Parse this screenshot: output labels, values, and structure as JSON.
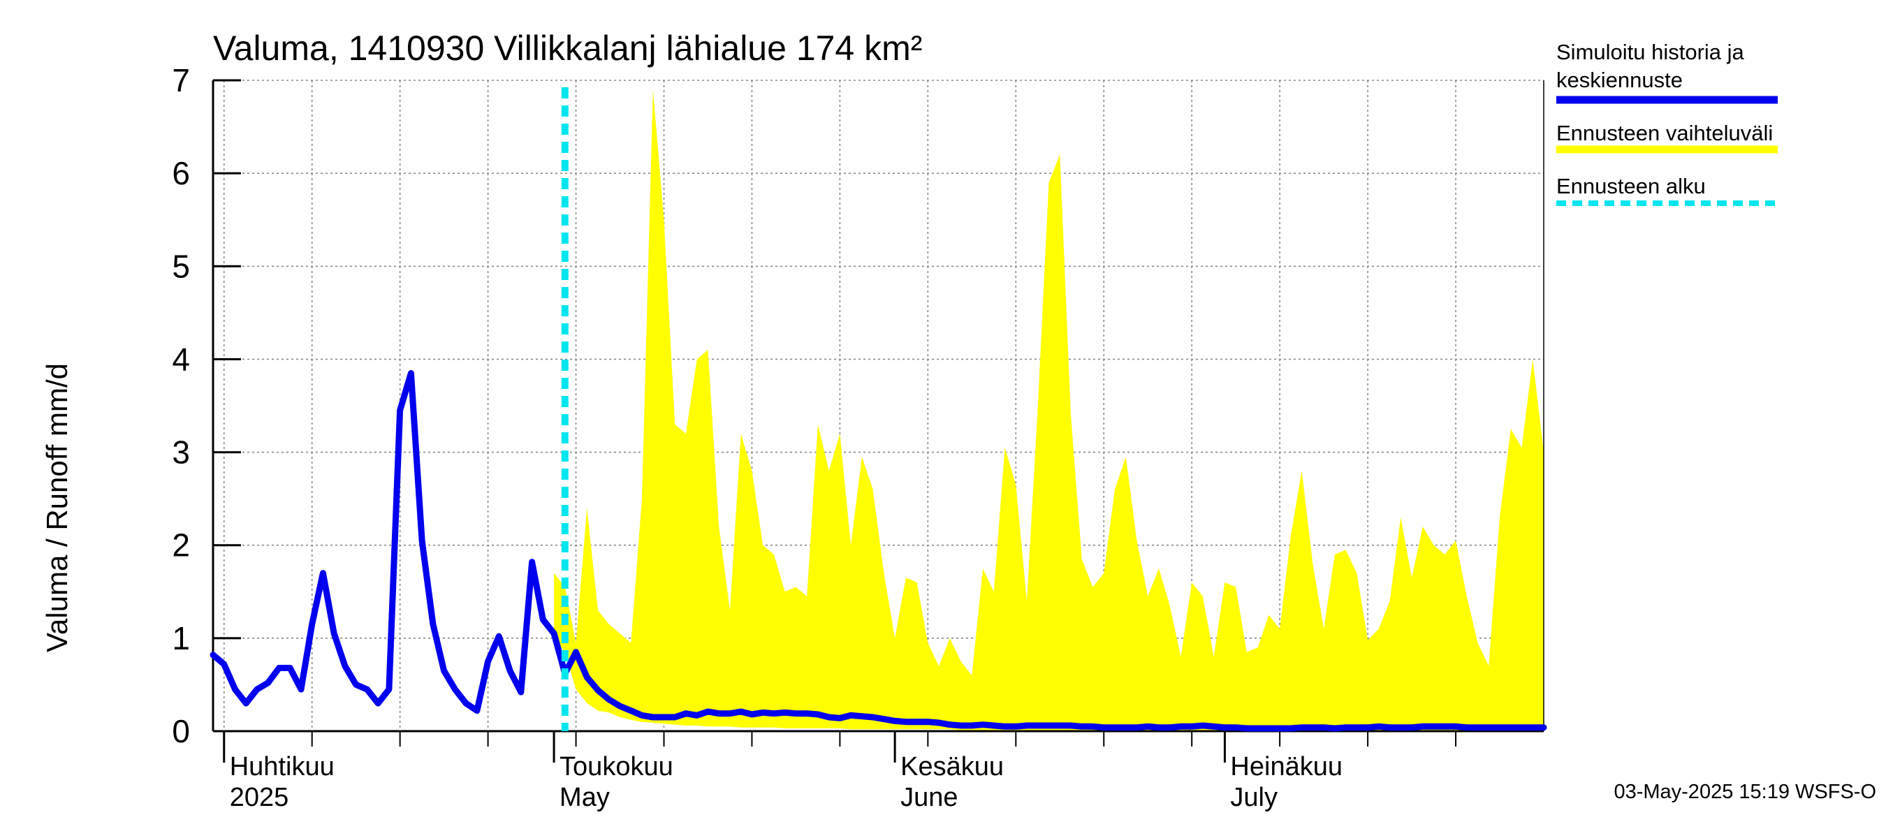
{
  "chart_data": {
    "type": "area",
    "title": "Valuma, 1410930 Villikkalanj lähialue 174 km²",
    "ylabel": "Valuma / Runoff    mm/d",
    "ylim": [
      0,
      7
    ],
    "yticks": [
      0,
      1,
      2,
      3,
      4,
      5,
      6,
      7
    ],
    "x_unit": "days since 2025-03-31 (day 1 = 1 April 2025)",
    "xlim": [
      0,
      121
    ],
    "grid": true,
    "forecast_start_day": 32,
    "month_labels": [
      {
        "day": 1,
        "line1": "Huhtikuu",
        "line2": "2025"
      },
      {
        "day": 31,
        "line1": "Toukokuu",
        "line2": "May"
      },
      {
        "day": 62,
        "line1": "Kesäkuu",
        "line2": "June"
      },
      {
        "day": 92,
        "line1": "Heinäkuu",
        "line2": "July"
      }
    ],
    "series": [
      {
        "name": "Simuloitu historia ja keskiennuste",
        "color": "#0000ee",
        "x": [
          0,
          1,
          2,
          3,
          4,
          5,
          6,
          7,
          8,
          9,
          10,
          11,
          12,
          13,
          14,
          15,
          16,
          17,
          18,
          19,
          20,
          21,
          22,
          23,
          24,
          25,
          26,
          27,
          28,
          29,
          30,
          31,
          32,
          33,
          34,
          35,
          36,
          37,
          38,
          39,
          40,
          41,
          42,
          43,
          44,
          45,
          46,
          47,
          48,
          49,
          50,
          51,
          52,
          53,
          54,
          55,
          56,
          57,
          58,
          59,
          60,
          61,
          62,
          63,
          64,
          65,
          66,
          67,
          68,
          69,
          70,
          71,
          72,
          73,
          74,
          75,
          76,
          77,
          78,
          79,
          80,
          81,
          82,
          83,
          84,
          85,
          86,
          87,
          88,
          89,
          90,
          91,
          92,
          93,
          94,
          95,
          96,
          97,
          98,
          99,
          100,
          101,
          102,
          103,
          104,
          105,
          106,
          107,
          108,
          109,
          110,
          111,
          112,
          113,
          114,
          115,
          116,
          117,
          118,
          119,
          120,
          121
        ],
        "values": [
          0.82,
          0.72,
          0.45,
          0.3,
          0.45,
          0.52,
          0.68,
          0.68,
          0.45,
          1.15,
          1.7,
          1.05,
          0.7,
          0.5,
          0.45,
          0.3,
          0.45,
          3.45,
          3.85,
          2.05,
          1.15,
          0.65,
          0.45,
          0.3,
          0.22,
          0.75,
          1.02,
          0.65,
          0.42,
          1.82,
          1.2,
          1.05,
          0.62,
          0.85,
          0.58,
          0.44,
          0.34,
          0.27,
          0.22,
          0.17,
          0.15,
          0.15,
          0.15,
          0.19,
          0.17,
          0.21,
          0.19,
          0.19,
          0.21,
          0.18,
          0.2,
          0.19,
          0.2,
          0.19,
          0.19,
          0.18,
          0.15,
          0.14,
          0.17,
          0.16,
          0.15,
          0.13,
          0.11,
          0.1,
          0.1,
          0.1,
          0.09,
          0.07,
          0.06,
          0.06,
          0.07,
          0.06,
          0.05,
          0.05,
          0.06,
          0.06,
          0.06,
          0.06,
          0.06,
          0.05,
          0.05,
          0.04,
          0.04,
          0.04,
          0.04,
          0.05,
          0.04,
          0.04,
          0.05,
          0.05,
          0.06,
          0.05,
          0.04,
          0.04,
          0.03,
          0.03,
          0.03,
          0.03,
          0.03,
          0.04,
          0.04,
          0.04,
          0.03,
          0.04,
          0.04,
          0.04,
          0.05,
          0.04,
          0.04,
          0.04,
          0.05,
          0.05,
          0.05,
          0.05,
          0.04,
          0.04,
          0.04,
          0.04,
          0.04,
          0.04,
          0.04,
          0.04
        ]
      },
      {
        "name": "Ennusteen vaihteluväli",
        "color": "#ffff00",
        "x": [
          31,
          32,
          33,
          34,
          35,
          36,
          37,
          38,
          39,
          40,
          41,
          42,
          43,
          44,
          45,
          46,
          47,
          48,
          49,
          50,
          51,
          52,
          53,
          54,
          55,
          56,
          57,
          58,
          59,
          60,
          61,
          62,
          63,
          64,
          65,
          66,
          67,
          68,
          69,
          70,
          71,
          72,
          73,
          74,
          75,
          76,
          77,
          78,
          79,
          80,
          81,
          82,
          83,
          84,
          85,
          86,
          87,
          88,
          89,
          90,
          91,
          92,
          93,
          94,
          95,
          96,
          97,
          98,
          99,
          100,
          101,
          102,
          103,
          104,
          105,
          106,
          107,
          108,
          109,
          110,
          111,
          112,
          113,
          114,
          115,
          116,
          117,
          118,
          119,
          120,
          121
        ],
        "upper": [
          1.7,
          1.55,
          0.95,
          2.4,
          1.3,
          1.15,
          1.05,
          0.95,
          2.5,
          6.9,
          5.5,
          3.3,
          3.2,
          4.0,
          4.1,
          2.2,
          1.3,
          3.2,
          2.8,
          2.0,
          1.9,
          1.5,
          1.55,
          1.45,
          3.3,
          2.8,
          3.2,
          2.0,
          2.95,
          2.6,
          1.7,
          1.0,
          1.65,
          1.6,
          0.95,
          0.7,
          1.0,
          0.75,
          0.6,
          1.75,
          1.5,
          3.05,
          2.65,
          1.4,
          3.5,
          5.9,
          6.2,
          3.4,
          1.85,
          1.55,
          1.7,
          2.6,
          2.95,
          2.05,
          1.45,
          1.75,
          1.35,
          0.8,
          1.6,
          1.45,
          0.8,
          1.6,
          1.55,
          0.85,
          0.9,
          1.25,
          1.1,
          2.1,
          2.8,
          1.8,
          1.1,
          1.9,
          1.95,
          1.7,
          0.98,
          1.1,
          1.4,
          2.3,
          1.65,
          2.2,
          2.0,
          1.9,
          2.05,
          1.45,
          0.95,
          0.7,
          2.3,
          3.25,
          3.05,
          4.0,
          3.0
        ],
        "lower": [
          1.0,
          0.85,
          0.45,
          0.3,
          0.22,
          0.2,
          0.15,
          0.12,
          0.1,
          0.09,
          0.08,
          0.07,
          0.06,
          0.06,
          0.05,
          0.05,
          0.05,
          0.04,
          0.04,
          0.04,
          0.04,
          0.03,
          0.03,
          0.03,
          0.03,
          0.03,
          0.03,
          0.02,
          0.02,
          0.02,
          0.02,
          0.02,
          0.02,
          0.02,
          0.02,
          0.02,
          0.02,
          0.01,
          0.01,
          0.01,
          0.01,
          0.01,
          0.01,
          0.01,
          0.01,
          0.01,
          0.01,
          0.01,
          0.01,
          0.01,
          0.01,
          0.01,
          0.01,
          0.01,
          0.01,
          0.01,
          0.01,
          0.01,
          0.01,
          0.01,
          0.01,
          0.01,
          0.01,
          0.01,
          0.01,
          0.01,
          0.01,
          0.01,
          0.01,
          0.01,
          0.01,
          0.01,
          0.01,
          0.01,
          0.01,
          0.01,
          0.01,
          0.01,
          0.01,
          0.01,
          0.01,
          0.01,
          0.01,
          0.01,
          0.01,
          0.01,
          0.01,
          0.01,
          0.01,
          0.01,
          0.01
        ]
      },
      {
        "name": "Ennusteen alku",
        "color": "#00e5ee"
      }
    ],
    "legend": [
      {
        "line1": "Simuloitu historia ja",
        "line2": "keskiennuste",
        "color": "#0000ee",
        "style": "solid"
      },
      {
        "line1": "Ennusteen vaihteluväli",
        "line2": "",
        "color": "#ffff00",
        "style": "solid"
      },
      {
        "line1": "Ennusteen alku",
        "line2": "",
        "color": "#00e5ee",
        "style": "dashed"
      }
    ],
    "legend_position": "right",
    "footer": "03-May-2025 15:19 WSFS-O"
  }
}
